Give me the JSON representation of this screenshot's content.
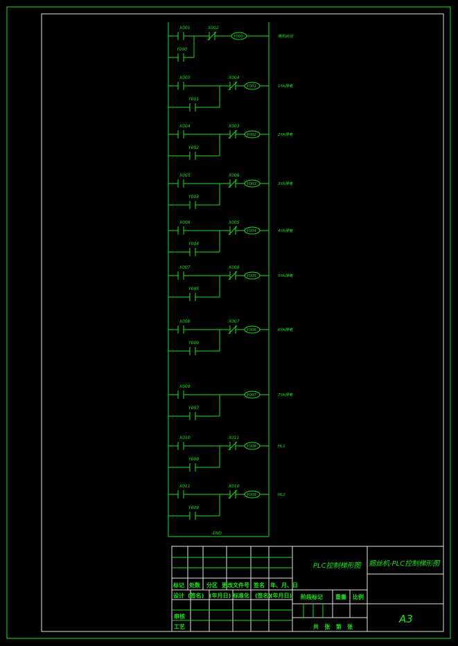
{
  "colors": {
    "line": "#19e619",
    "frame": "#e6e6e6",
    "background": "#000000"
  },
  "rungs": [
    {
      "contact": "X001",
      "interlock": "X002",
      "coil": "Y000",
      "hold": "Y000",
      "output": "电机启动"
    },
    {
      "contact": "X003",
      "interlock": "X004",
      "coil": "Y001",
      "hold": "Y001",
      "output": "1YA得电"
    },
    {
      "contact": "X004",
      "interlock": "X003",
      "coil": "Y002",
      "hold": "Y002",
      "output": "2YA得电"
    },
    {
      "contact": "X005",
      "interlock": "X006",
      "coil": "Y003",
      "hold": "Y003",
      "output": "3YA得电"
    },
    {
      "contact": "X006",
      "interlock": "X005",
      "coil": "Y004",
      "hold": "Y004",
      "output": "4YA得电"
    },
    {
      "contact": "X007",
      "interlock": "X008",
      "coil": "Y005",
      "hold": "Y005",
      "output": "5YA得电"
    },
    {
      "contact": "X008",
      "interlock": "X007",
      "coil": "Y006",
      "hold": "Y006",
      "output": "6YA得电"
    },
    {
      "contact": "X009",
      "interlock": null,
      "coil": "Y007",
      "hold": "Y007",
      "output": "7YA得电"
    },
    {
      "contact": "X010",
      "interlock": "X011",
      "coil": "Y008",
      "hold": "Y008",
      "output": "HL1"
    },
    {
      "contact": "X011",
      "interlock": "X010",
      "coil": "Y009",
      "hold": "Y009",
      "output": "HL2"
    }
  ],
  "end_label": "END",
  "title_block": {
    "drawing_name": "PLC控制梯形图",
    "project_title": "捆丝机-PLC控制梯形图",
    "sheet_size": "A3",
    "row_headers": [
      "标记",
      "处数",
      "分区",
      "更改文件号",
      "签名",
      "年、月、日"
    ],
    "design_row": [
      "设计",
      "(签名)",
      "(年月日)",
      "标准化",
      "(签名)",
      "(年月日)"
    ],
    "stage_mark": "阶段标记",
    "weight": "重量",
    "scale": "比例",
    "review": "审核",
    "process": "工艺",
    "sheets": "共   张   第   张"
  }
}
